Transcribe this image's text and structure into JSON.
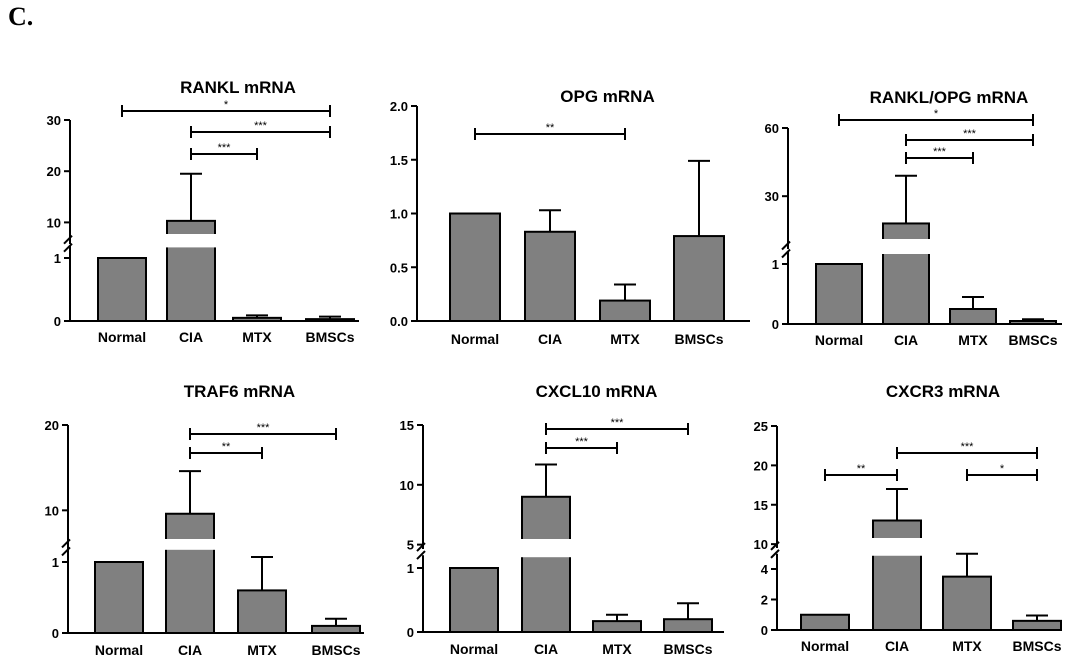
{
  "panel_label": "C.",
  "chart_data": [
    {
      "type": "bar",
      "title": "RANKL mRNA",
      "broken_axis": true,
      "categories": [
        "Normal",
        "CIA",
        "MTX",
        "BMSCs"
      ],
      "values": [
        1,
        10.3,
        0.05,
        0.03
      ],
      "errors": [
        0,
        9.2,
        0.04,
        0.04
      ],
      "lower_ticks": [
        0,
        1
      ],
      "upper_ticks": [
        10,
        20,
        30
      ],
      "ylim_lower": [
        0,
        1.2
      ],
      "ylim_upper": [
        5,
        30
      ],
      "significance": [
        {
          "from": 0,
          "to": 3,
          "label": "*"
        },
        {
          "from": 1,
          "to": 3,
          "label": "***"
        },
        {
          "from": 1,
          "to": 2,
          "label": "***"
        }
      ]
    },
    {
      "type": "bar",
      "title": "OPG  mRNA",
      "broken_axis": false,
      "categories": [
        "Normal",
        "CIA",
        "MTX",
        "BMSCs"
      ],
      "values": [
        1.0,
        0.83,
        0.19,
        0.79
      ],
      "errors": [
        0,
        0.2,
        0.15,
        0.7
      ],
      "ticks": [
        "0.0",
        "0.5",
        "1.0",
        "1.5",
        "2.0"
      ],
      "ylim": [
        0,
        2.0
      ],
      "significance": [
        {
          "from": 0,
          "to": 2,
          "label": "**"
        }
      ]
    },
    {
      "type": "bar",
      "title": "RANKL/OPG mRNA",
      "broken_axis": true,
      "categories": [
        "Normal",
        "CIA",
        "MTX",
        "BMSCs"
      ],
      "values": [
        1,
        18,
        0.25,
        0.05
      ],
      "errors": [
        0,
        21,
        0.2,
        0.03
      ],
      "lower_ticks": [
        0,
        1
      ],
      "upper_ticks": [
        30,
        60
      ],
      "ylim_lower": [
        0,
        1.2
      ],
      "ylim_upper": [
        5,
        60
      ],
      "significance": [
        {
          "from": 0,
          "to": 3,
          "label": "*"
        },
        {
          "from": 1,
          "to": 3,
          "label": "***"
        },
        {
          "from": 1,
          "to": 2,
          "label": "***"
        }
      ]
    },
    {
      "type": "bar",
      "title": "TRAF6 mRNA",
      "broken_axis": true,
      "categories": [
        "Normal",
        "CIA",
        "MTX",
        "BMSCs"
      ],
      "values": [
        1,
        9.6,
        0.6,
        0.1
      ],
      "errors": [
        0,
        5,
        0.47,
        0.1
      ],
      "lower_ticks": [
        0,
        1
      ],
      "upper_ticks": [
        10,
        20
      ],
      "ylim_lower": [
        0,
        1.2
      ],
      "ylim_upper": [
        5,
        20
      ],
      "significance": [
        {
          "from": 1,
          "to": 3,
          "label": "***"
        },
        {
          "from": 1,
          "to": 2,
          "label": "**"
        }
      ]
    },
    {
      "type": "bar",
      "title": "CXCL10 mRNA",
      "broken_axis": true,
      "categories": [
        "Normal",
        "CIA",
        "MTX",
        "BMSCs"
      ],
      "values": [
        1,
        9,
        0.17,
        0.2
      ],
      "errors": [
        0,
        2.7,
        0.1,
        0.25
      ],
      "lower_ticks": [
        0,
        1
      ],
      "upper_ticks": [
        5,
        10,
        15
      ],
      "ylim_lower": [
        0,
        1.2
      ],
      "ylim_upper": [
        4.3,
        15
      ],
      "significance": [
        {
          "from": 1,
          "to": 3,
          "label": "***"
        },
        {
          "from": 1,
          "to": 2,
          "label": "***"
        }
      ]
    },
    {
      "type": "bar",
      "title": "CXCR3 mRNA",
      "broken_axis": true,
      "categories": [
        "Normal",
        "CIA",
        "MTX",
        "BMSCs"
      ],
      "values": [
        1,
        13,
        3.5,
        0.6
      ],
      "errors": [
        0,
        4,
        1.5,
        0.35
      ],
      "lower_ticks": [
        0,
        2,
        4
      ],
      "upper_ticks": [
        10,
        15,
        20,
        25
      ],
      "ylim_lower": [
        0,
        5
      ],
      "ylim_upper": [
        9,
        25
      ],
      "significance": [
        {
          "from": 0,
          "to": 1,
          "label": "**"
        },
        {
          "from": 1,
          "to": 3,
          "label": "***"
        },
        {
          "from": 2,
          "to": 3,
          "label": "*"
        }
      ]
    }
  ]
}
